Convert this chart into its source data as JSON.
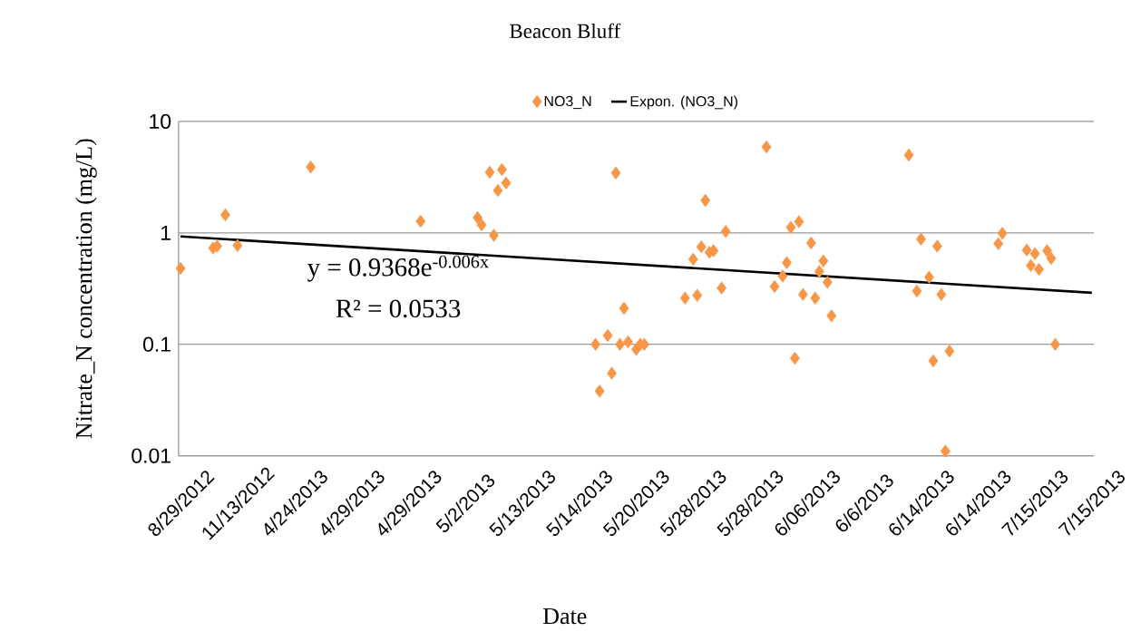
{
  "chart_data": {
    "type": "scatter",
    "title": "Beacon Bluff",
    "xlabel": "Date",
    "ylabel": "Nitrate_N concentration (mg/L)",
    "categories": [
      "8/29/2012",
      null,
      null,
      null,
      null,
      null,
      null,
      null,
      null,
      null,
      null,
      null,
      null,
      null,
      "11/13/2012",
      null,
      null,
      null,
      null,
      null,
      null,
      null,
      null,
      null,
      null,
      null,
      null,
      null,
      "4/24/2013",
      null,
      null,
      null,
      null,
      null,
      null,
      null,
      null,
      null,
      null,
      null,
      null,
      null,
      "4/29/2013",
      null,
      null,
      null,
      null,
      null,
      null,
      null,
      null,
      null,
      null,
      null,
      null,
      null,
      "4/29/2013",
      null,
      null,
      null,
      null,
      null,
      null,
      null,
      null,
      null,
      null,
      null,
      null,
      null,
      "5/2/2013",
      null,
      null,
      null,
      null,
      null,
      null,
      null,
      null,
      null,
      null,
      null,
      null,
      null,
      "5/13/2013",
      null,
      null,
      null,
      null,
      null,
      null,
      null,
      null,
      null,
      null,
      null,
      null,
      null,
      "5/14/2013",
      null,
      null,
      null,
      null,
      null,
      null,
      null,
      null,
      null,
      null,
      null,
      null,
      null,
      "5/20/2013",
      null,
      null,
      null,
      null,
      null,
      null,
      null,
      null,
      null,
      null,
      null,
      null,
      null,
      "5/28/2013",
      null,
      null,
      null,
      null,
      null,
      null,
      null,
      null,
      null,
      null,
      null,
      null,
      null,
      "5/28/2013",
      null,
      null,
      null,
      null,
      null,
      null,
      null,
      null,
      null,
      null,
      null,
      null,
      null,
      "6/06/2013",
      null,
      null,
      null,
      null,
      null,
      null,
      null,
      null,
      null,
      null,
      null,
      null,
      null,
      "6/6/2013",
      null,
      null,
      null,
      null,
      null,
      null,
      null,
      null,
      null,
      null,
      null,
      null,
      null,
      "6/14/2013",
      null,
      null,
      null,
      null,
      null,
      null,
      null,
      null,
      null,
      null,
      null,
      null,
      null,
      "6/14/2013",
      null,
      null,
      null,
      null,
      null,
      null,
      null,
      null,
      null,
      null,
      null,
      null,
      null,
      "7/15/2013",
      null,
      null,
      null,
      null,
      null,
      null,
      null,
      null,
      null,
      null,
      null,
      null,
      null,
      "7/15/2013"
    ],
    "series": [
      {
        "name": "NO3_N",
        "type": "scatter",
        "color": "#f79646",
        "marker": "diamond",
        "values": [
          0.48,
          null,
          null,
          null,
          null,
          null,
          null,
          null,
          0.73,
          0.76,
          null,
          1.45,
          null,
          null,
          0.77,
          null,
          null,
          null,
          null,
          null,
          null,
          null,
          null,
          null,
          null,
          null,
          null,
          null,
          null,
          null,
          null,
          null,
          3.9,
          null,
          null,
          null,
          null,
          null,
          null,
          null,
          null,
          null,
          null,
          null,
          null,
          null,
          null,
          null,
          null,
          null,
          null,
          null,
          null,
          null,
          null,
          null,
          null,
          null,
          null,
          1.27,
          null,
          null,
          null,
          null,
          null,
          null,
          null,
          null,
          null,
          null,
          null,
          null,
          null,
          1.37,
          1.18,
          null,
          3.5,
          0.95,
          2.4,
          3.7,
          2.8,
          null,
          null,
          null,
          null,
          null,
          null,
          null,
          null,
          null,
          null,
          null,
          null,
          null,
          null,
          null,
          null,
          null,
          null,
          null,
          null,
          null,
          0.1,
          0.038,
          null,
          0.12,
          0.055,
          3.45,
          0.1,
          0.21,
          0.105,
          null,
          0.09,
          0.1,
          0.1,
          null,
          null,
          null,
          null,
          null,
          null,
          null,
          null,
          null,
          0.26,
          null,
          0.58,
          0.275,
          0.75,
          1.96,
          0.67,
          0.69,
          null,
          0.32,
          1.03,
          null,
          null,
          null,
          null,
          null,
          null,
          null,
          null,
          null,
          5.9,
          null,
          0.33,
          null,
          0.41,
          0.54,
          1.12,
          0.075,
          1.26,
          0.28,
          null,
          0.81,
          0.26,
          0.45,
          0.56,
          0.36,
          0.18,
          null,
          null,
          null,
          null,
          null,
          null,
          null,
          null,
          null,
          null,
          null,
          null,
          null,
          null,
          null,
          null,
          null,
          null,
          5.0,
          null,
          0.3,
          0.88,
          null,
          0.4,
          0.071,
          0.76,
          0.28,
          0.011,
          0.087,
          null,
          null,
          null,
          null,
          null,
          null,
          null,
          null,
          null,
          null,
          null,
          0.8,
          0.99,
          null,
          null,
          null,
          null,
          null,
          0.7,
          0.51,
          0.65,
          0.47,
          null,
          0.69,
          0.59,
          0.1,
          null,
          null,
          null,
          null,
          null,
          null,
          null,
          null,
          null
        ]
      },
      {
        "name": "Expon. (NO3_N)",
        "type": "line",
        "color": "#000000",
        "marker": "none",
        "line_style": "solid",
        "values": [
          0.93,
          null,
          null,
          null,
          null,
          null,
          null,
          null,
          null,
          null,
          null,
          null,
          null,
          null,
          null,
          null,
          null,
          null,
          null,
          null,
          null,
          null,
          null,
          null,
          null,
          null,
          null,
          null,
          null,
          null,
          null,
          null,
          null,
          null,
          null,
          null,
          null,
          null,
          null,
          null,
          null,
          null,
          null,
          null,
          null,
          null,
          null,
          null,
          null,
          null,
          null,
          null,
          null,
          null,
          null,
          null,
          null,
          null,
          null,
          null,
          null,
          null,
          null,
          null,
          null,
          null,
          null,
          null,
          null,
          null,
          null,
          null,
          null,
          null,
          null,
          null,
          null,
          null,
          null,
          null,
          null,
          null,
          null,
          null,
          null,
          null,
          null,
          null,
          null,
          null,
          null,
          null,
          null,
          null,
          null,
          null,
          null,
          null,
          null,
          null,
          null,
          null,
          null,
          null,
          null,
          null,
          null,
          null,
          null,
          null,
          null,
          null,
          null,
          null,
          null,
          null,
          null,
          null,
          null,
          null,
          null,
          null,
          null,
          null,
          null,
          null,
          null,
          null,
          null,
          null,
          null,
          null,
          null,
          null,
          null,
          null,
          null,
          null,
          null,
          null,
          null,
          null,
          null,
          null,
          null,
          null,
          null,
          null,
          null,
          null,
          null,
          null,
          null,
          null,
          null,
          null,
          null,
          null,
          null,
          null,
          null,
          null,
          null,
          null,
          null,
          null,
          null,
          null,
          null,
          null,
          null,
          null,
          null,
          null,
          null,
          null,
          null,
          null,
          null,
          null,
          null,
          null,
          null,
          null,
          null,
          null,
          null,
          null,
          null,
          null,
          null,
          null,
          null,
          null,
          null,
          null,
          null,
          null,
          null,
          null,
          null,
          null,
          null,
          null,
          null,
          null,
          null,
          null,
          null,
          null,
          null,
          null,
          null,
          null,
          null,
          null,
          null,
          null,
          null,
          null,
          null,
          null,
          null,
          null,
          0.29
        ]
      }
    ],
    "log": "y",
    "ylim": [
      0.01,
      10
    ],
    "yticks": [
      0.01,
      0.1,
      1,
      10
    ],
    "grid": "y",
    "legend": "top",
    "annotations": [
      "y = 0.9368e$^{-0.006x}$",
      "R² = 0.0533"
    ]
  }
}
